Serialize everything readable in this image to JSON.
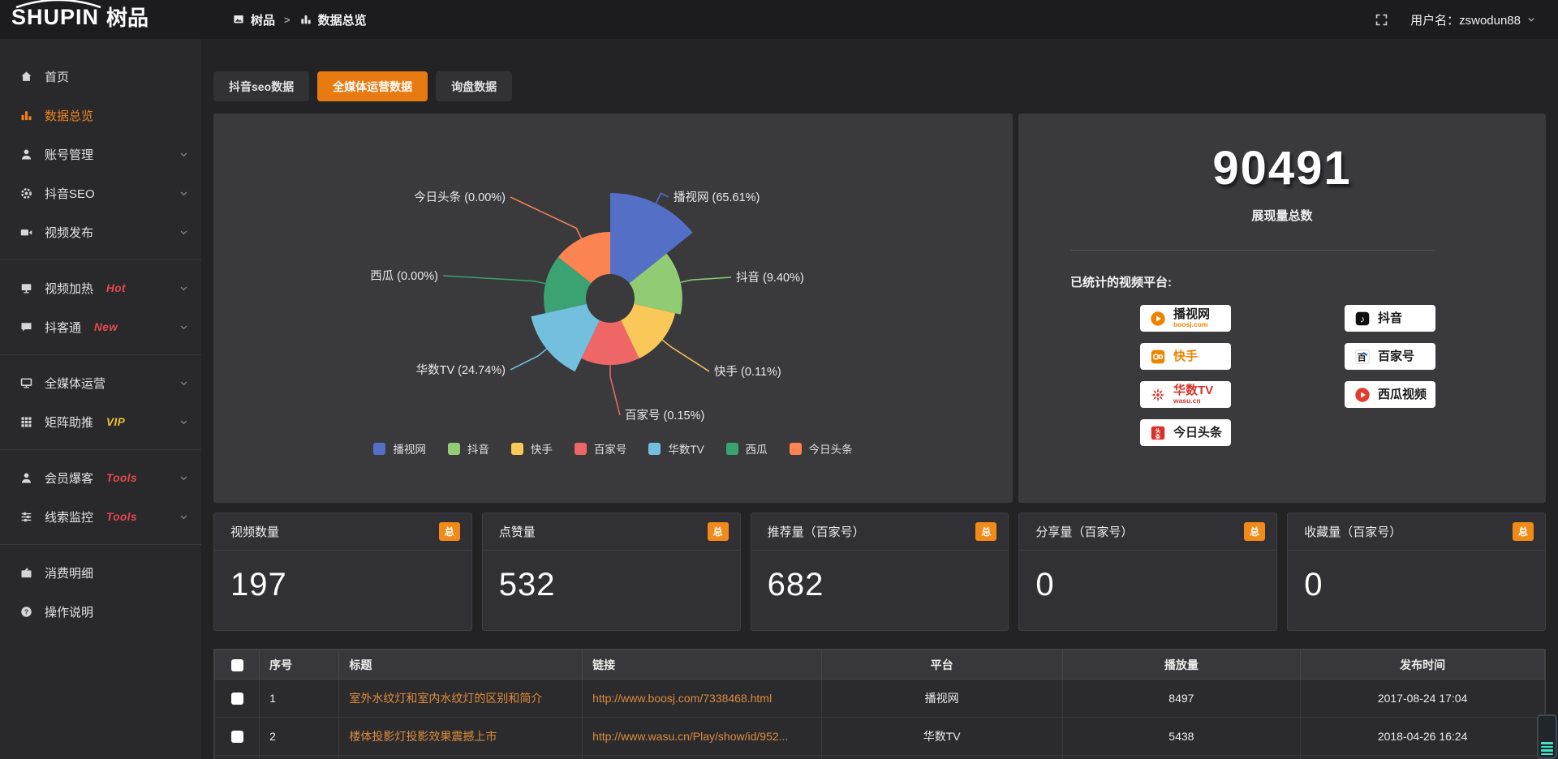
{
  "topbar": {
    "logo_main": "SHUPIN",
    "logo_suffix": "树品",
    "breadcrumb": [
      {
        "label": "树品",
        "icon": "app-icon"
      },
      {
        "label": "数据总览",
        "icon": "bar-chart-icon"
      }
    ],
    "username": "用户名：zswodun88"
  },
  "sidebar": {
    "items": [
      {
        "key": "home",
        "label": "首页",
        "icon": "home-icon"
      },
      {
        "key": "data-overview",
        "label": "数据总览",
        "icon": "bar-chart-icon",
        "active": true
      },
      {
        "key": "account-manage",
        "label": "账号管理",
        "icon": "user-icon",
        "chevron": true
      },
      {
        "key": "douyin-seo",
        "label": "抖音SEO",
        "icon": "gear-icon",
        "chevron": true
      },
      {
        "key": "video-publish",
        "label": "视频发布",
        "icon": "video-icon",
        "chevron": true,
        "divider_after": true
      },
      {
        "key": "video-heat",
        "label": "视频加热",
        "icon": "screen-icon",
        "badge": "Hot",
        "badge_color": "#e8494d",
        "chevron": true
      },
      {
        "key": "douketong",
        "label": "抖客通",
        "icon": "chat-icon",
        "badge": "New",
        "badge_color": "#e8494d",
        "chevron": true,
        "divider_after": true
      },
      {
        "key": "omni-media",
        "label": "全媒体运营",
        "icon": "monitor-icon",
        "chevron": true
      },
      {
        "key": "matrix-boost",
        "label": "矩阵助推",
        "icon": "grid-icon",
        "badge": "VIP",
        "badge_color": "#f0c330",
        "chevron": true,
        "divider_after": true
      },
      {
        "key": "member-leads",
        "label": "会员爆客",
        "icon": "member-icon",
        "badge": "Tools",
        "badge_color": "#e8494d",
        "chevron": true
      },
      {
        "key": "clue-monitor",
        "label": "线索监控",
        "icon": "sliders-icon",
        "badge": "Tools",
        "badge_color": "#e8494d",
        "chevron": true,
        "divider_after": true
      },
      {
        "key": "consume-detail",
        "label": "消费明细",
        "icon": "wallet-icon"
      },
      {
        "key": "help",
        "label": "操作说明",
        "icon": "question-icon"
      }
    ]
  },
  "tabs": [
    {
      "label": "抖音seo数据",
      "active": false
    },
    {
      "label": "全媒体运营数据",
      "active": true
    },
    {
      "label": "询盘数据",
      "active": false
    }
  ],
  "chart_data": {
    "type": "pie",
    "variant": "nightingale-rose",
    "categories": [
      "播视网",
      "抖音",
      "快手",
      "百家号",
      "华数TV",
      "西瓜",
      "今日头条"
    ],
    "values": [
      65.61,
      9.4,
      0.11,
      0.15,
      24.74,
      0.0,
      0.0
    ],
    "unit": "%",
    "colors": [
      "#5470c6",
      "#91cc75",
      "#fac858",
      "#ee6666",
      "#73c0de",
      "#3ba272",
      "#fc8452"
    ],
    "labels": [
      "播视网 (65.61%)",
      "抖音 (9.40%)",
      "快手 (0.11%)",
      "百家号 (0.15%)",
      "华数TV (24.74%)",
      "西瓜 (0.00%)",
      "今日头条 (0.00%)"
    ],
    "legend": [
      "播视网",
      "抖音",
      "快手",
      "百家号",
      "华数TV",
      "西瓜",
      "今日头条"
    ],
    "legend_position": "bottom",
    "title": ""
  },
  "summary": {
    "total_value": "90491",
    "total_label": "展现量总数",
    "platforms_title": "已统计的视频平台:",
    "platforms": [
      {
        "key": "boosj",
        "name": "播视网",
        "sub": "boosj.com",
        "icon": "boosj-logo",
        "name_color": "#1a1a1a",
        "sub_color": "#f08300"
      },
      {
        "key": "douyin",
        "name": "抖音",
        "icon": "douyin-logo",
        "name_color": "#111111"
      },
      {
        "key": "kuaishou",
        "name": "快手",
        "icon": "kuaishou-logo",
        "name_color": "#f08300"
      },
      {
        "key": "baijiahao",
        "name": "百家号",
        "icon": "baijiahao-logo",
        "name_color": "#1a1a1a"
      },
      {
        "key": "wasu",
        "name": "华数TV",
        "sub": "wasu.cn",
        "icon": "wasu-logo",
        "name_color": "#d6342a",
        "sub_color": "#d6342a"
      },
      {
        "key": "xigua",
        "name": "西瓜视频",
        "icon": "xigua-logo",
        "name_color": "#1a1a1a"
      },
      {
        "key": "toutiao",
        "name": "今日头条",
        "icon": "toutiao-logo",
        "name_color": "#222222"
      }
    ]
  },
  "stat_cards": [
    {
      "label": "视频数量",
      "badge": "总",
      "value": "197"
    },
    {
      "label": "点赞量",
      "badge": "总",
      "value": "532"
    },
    {
      "label": "推荐量（百家号）",
      "badge": "总",
      "value": "682"
    },
    {
      "label": "分享量（百家号）",
      "badge": "总",
      "value": "0"
    },
    {
      "label": "收藏量（百家号）",
      "badge": "总",
      "value": "0"
    }
  ],
  "table": {
    "headers": [
      "序号",
      "标题",
      "链接",
      "平台",
      "播放量",
      "发布时间"
    ],
    "rows": [
      {
        "index": "1",
        "title": "室外水纹灯和室内水纹灯的区别和简介",
        "link": "http://www.boosj.com/7338468.html",
        "platform": "播视网",
        "plays": "8497",
        "published": "2017-08-24 17:04"
      },
      {
        "index": "2",
        "title": "楼体投影灯投影效果震撼上市",
        "link": "http://www.wasu.cn/Play/show/id/952...",
        "platform": "华数TV",
        "plays": "5438",
        "published": "2018-04-26 16:24"
      }
    ]
  },
  "colors": {
    "accent": "#e87a12",
    "badge": "#f28a19",
    "link": "#de8c3c",
    "active_menu": "#f0821e"
  }
}
